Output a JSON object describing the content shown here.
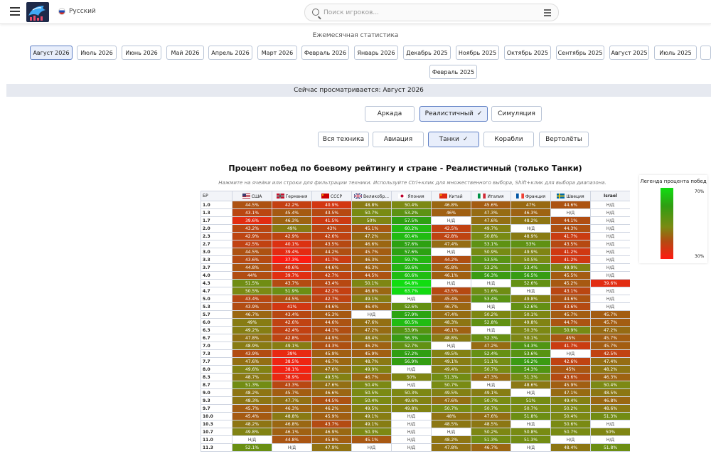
{
  "header": {
    "language": "Русский",
    "search_placeholder": "Поиск игроков..."
  },
  "section_title": "Ежемесячная статистика",
  "months": [
    "Август 2026",
    "Июль 2026",
    "Июнь 2026",
    "Май 2026",
    "Апрель 2026",
    "Март 2026",
    "Февраль 2026",
    "Январь 2026",
    "Декабрь 2025",
    "Ноябрь 2025",
    "Октябрь 2025",
    "Сентябрь 2025",
    "Август 2025",
    "Июль 2025",
    "Февраль 2025"
  ],
  "active_month": "Август 2026",
  "viewing_text": "Сейчас просматривается: Август 2026",
  "game_modes": [
    "Аркада",
    "Реалистичный",
    "Симуляция"
  ],
  "active_mode": "Реалистичный",
  "vehicle_types": [
    "Вся техника",
    "Авиация",
    "Танки",
    "Корабли",
    "Вертолёты"
  ],
  "active_vehicle": "Танки",
  "chart_title": "Процент побед по боевому рейтингу и стране - Реалистичный (только Танки)",
  "chart_hint": "Нажмите на ячейки или строки для фильтрации техники. Используйте Ctrl+клик для множественного выбора, Shift+клик для выбора диапазона.",
  "legend": {
    "title": "Легенда процента побед",
    "max": "70%",
    "min": "30%"
  },
  "chart_data": {
    "type": "heatmap",
    "row_header": "БР",
    "columns": [
      "США",
      "Германия",
      "СССР",
      "Великобр...",
      "Япония",
      "Китай",
      "Италия",
      "Франция",
      "Швеция",
      "Israel"
    ],
    "column_icons": [
      "us-flag-icon",
      "de-flag-icon",
      "ussr-flag-icon",
      "uk-flag-icon",
      "jp-flag-icon",
      "cn-flag-icon",
      "it-flag-icon",
      "fr-flag-icon",
      "se-flag-icon",
      ""
    ],
    "na_label": "Н/Д",
    "color_scale": {
      "min": 30,
      "max": 70,
      "low_color": "#ff1a12",
      "high_color": "#11dd11"
    },
    "rows": [
      {
        "br": "1.0",
        "values": [
          "44.5%",
          "42.2%",
          "40.9%",
          "48.8%",
          "50.4%",
          "46.8%",
          "45.6%",
          "47%",
          "44.6%",
          "Н/Д"
        ]
      },
      {
        "br": "1.3",
        "values": [
          "43.1%",
          "45.4%",
          "43.5%",
          "50.7%",
          "53.2%",
          "46%",
          "47.3%",
          "46.3%",
          "Н/Д",
          "Н/Д"
        ]
      },
      {
        "br": "1.7",
        "values": [
          "39.6%",
          "46.3%",
          "41.5%",
          "50%",
          "57.5%",
          "Н/Д",
          "47.6%",
          "48.2%",
          "44.1%",
          "Н/Д"
        ]
      },
      {
        "br": "2.0",
        "values": [
          "43.2%",
          "49%",
          "43%",
          "45.1%",
          "60.2%",
          "42.5%",
          "49.7%",
          "Н/Д",
          "44.3%",
          "Н/Д"
        ]
      },
      {
        "br": "2.3",
        "values": [
          "42.9%",
          "42.9%",
          "42.6%",
          "47.2%",
          "60.4%",
          "42.8%",
          "50.8%",
          "48.9%",
          "41.7%",
          "Н/Д"
        ]
      },
      {
        "br": "2.7",
        "values": [
          "42.5%",
          "40.1%",
          "43.5%",
          "46.6%",
          "57.6%",
          "47.4%",
          "53.1%",
          "53%",
          "43.5%",
          "Н/Д"
        ]
      },
      {
        "br": "3.0",
        "values": [
          "44.5%",
          "39.4%",
          "44.2%",
          "45.7%",
          "57.6%",
          "Н/Д",
          "50.9%",
          "49.9%",
          "41.2%",
          "Н/Д"
        ]
      },
      {
        "br": "3.3",
        "values": [
          "43.6%",
          "37.3%",
          "41.7%",
          "46.3%",
          "59.7%",
          "44.2%",
          "53.5%",
          "50.5%",
          "41.2%",
          "Н/Д"
        ]
      },
      {
        "br": "3.7",
        "values": [
          "44.8%",
          "40.6%",
          "44.6%",
          "46.3%",
          "59.6%",
          "45.8%",
          "53.2%",
          "53.4%",
          "49.9%",
          "Н/Д"
        ]
      },
      {
        "br": "4.0",
        "values": [
          "44%",
          "39.7%",
          "42.7%",
          "44.5%",
          "60.6%",
          "46.1%",
          "56.3%",
          "56.5%",
          "45.5%",
          "Н/Д"
        ]
      },
      {
        "br": "4.3",
        "values": [
          "51.5%",
          "43.7%",
          "43.4%",
          "50.1%",
          "64.8%",
          "Н/Д",
          "Н/Д",
          "52.6%",
          "45.2%",
          "39.6%"
        ]
      },
      {
        "br": "4.7",
        "values": [
          "50.5%",
          "51.9%",
          "42.2%",
          "46.8%",
          "63.7%",
          "43.5%",
          "51.6%",
          "Н/Д",
          "43.1%",
          "Н/Д"
        ]
      },
      {
        "br": "5.0",
        "values": [
          "43.4%",
          "44.5%",
          "42.7%",
          "49.1%",
          "Н/Д",
          "45.4%",
          "53.4%",
          "49.8%",
          "44.6%",
          "Н/Д"
        ]
      },
      {
        "br": "5.3",
        "values": [
          "43.9%",
          "41%",
          "44.6%",
          "46.4%",
          "52.6%",
          "46.7%",
          "Н/Д",
          "52.6%",
          "43.6%",
          "Н/Д"
        ]
      },
      {
        "br": "5.7",
        "values": [
          "46.7%",
          "43.4%",
          "45.3%",
          "Н/Д",
          "57.9%",
          "47.4%",
          "50.2%",
          "50.1%",
          "45.7%",
          "45.7%"
        ]
      },
      {
        "br": "6.0",
        "values": [
          "49%",
          "42.6%",
          "44.6%",
          "47.6%",
          "60.5%",
          "48.3%",
          "52.8%",
          "49.8%",
          "44.7%",
          "45.7%"
        ]
      },
      {
        "br": "6.3",
        "values": [
          "49.2%",
          "42.4%",
          "44.1%",
          "47.2%",
          "53.9%",
          "46.1%",
          "Н/Д",
          "50.3%",
          "50.9%",
          "47.2%"
        ]
      },
      {
        "br": "6.7",
        "values": [
          "47.8%",
          "42.8%",
          "44.9%",
          "48.4%",
          "56.3%",
          "48.8%",
          "52.3%",
          "50.1%",
          "45%",
          "45.7%"
        ]
      },
      {
        "br": "7.0",
        "values": [
          "48.9%",
          "49.1%",
          "44.3%",
          "46.2%",
          "52.7%",
          "Н/Д",
          "47.2%",
          "54.3%",
          "41.7%",
          "45.7%"
        ]
      },
      {
        "br": "7.3",
        "values": [
          "43.9%",
          "39%",
          "45.9%",
          "45.9%",
          "57.2%",
          "49.5%",
          "52.4%",
          "53.6%",
          "Н/Д",
          "42.5%"
        ]
      },
      {
        "br": "7.7",
        "values": [
          "47.6%",
          "38.5%",
          "46.7%",
          "48.7%",
          "56.9%",
          "49.1%",
          "51.1%",
          "56.2%",
          "42.6%",
          "47.4%"
        ]
      },
      {
        "br": "8.0",
        "values": [
          "49.6%",
          "38.1%",
          "47.6%",
          "49.9%",
          "Н/Д",
          "49.4%",
          "50.7%",
          "54.3%",
          "45%",
          "48.2%"
        ]
      },
      {
        "br": "8.3",
        "values": [
          "48.7%",
          "38.9%",
          "49.5%",
          "46.7%",
          "50%",
          "51.3%",
          "47.3%",
          "51.3%",
          "43.6%",
          "46.3%"
        ]
      },
      {
        "br": "8.7",
        "values": [
          "51.3%",
          "43.3%",
          "47.6%",
          "50.4%",
          "Н/Д",
          "50.7%",
          "Н/Д",
          "48.6%",
          "45.9%",
          "50.4%"
        ]
      },
      {
        "br": "9.0",
        "values": [
          "48.2%",
          "45.7%",
          "46.6%",
          "50.5%",
          "50.3%",
          "49.5%",
          "49.1%",
          "Н/Д",
          "47.1%",
          "48.5%"
        ]
      },
      {
        "br": "9.3",
        "values": [
          "48.3%",
          "47.7%",
          "44.5%",
          "50.4%",
          "49.6%",
          "47.6%",
          "50.7%",
          "51%",
          "49.4%",
          "46.8%"
        ]
      },
      {
        "br": "9.7",
        "values": [
          "45.7%",
          "46.3%",
          "46.2%",
          "49.5%",
          "49.8%",
          "50.7%",
          "50.7%",
          "50.7%",
          "50.2%",
          "48.6%"
        ]
      },
      {
        "br": "10.0",
        "values": [
          "45.4%",
          "48.8%",
          "45.9%",
          "49.1%",
          "Н/Д",
          "48%",
          "47.6%",
          "51.8%",
          "50.4%",
          "51.3%"
        ]
      },
      {
        "br": "10.3",
        "values": [
          "48.2%",
          "46.8%",
          "43.7%",
          "49.1%",
          "Н/Д",
          "48.5%",
          "48.5%",
          "Н/Д",
          "50.6%",
          "Н/Д"
        ]
      },
      {
        "br": "10.7",
        "values": [
          "49.8%",
          "46.1%",
          "46.9%",
          "50.3%",
          "Н/Д",
          "Н/Д",
          "50.2%",
          "50.8%",
          "50.7%",
          "50%"
        ]
      },
      {
        "br": "11.0",
        "values": [
          "Н/Д",
          "44.8%",
          "45.8%",
          "45.1%",
          "Н/Д",
          "48.2%",
          "51.3%",
          "51.3%",
          "Н/Д",
          "Н/Д"
        ]
      },
      {
        "br": "11.3",
        "values": [
          "52.1%",
          "Н/Д",
          "47.9%",
          "Н/Д",
          "Н/Д",
          "47.8%",
          "46.7%",
          "Н/Д",
          "48.4%",
          "51.8%"
        ]
      }
    ]
  }
}
